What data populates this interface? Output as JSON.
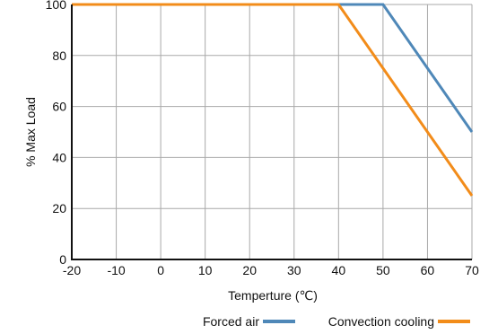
{
  "chart_data": {
    "type": "line",
    "xlabel": "Temperture (℃)",
    "ylabel": "% Max Load",
    "xlim": [
      -20,
      70
    ],
    "ylim": [
      0,
      100
    ],
    "xticks": [
      "-20",
      "-10",
      "0",
      "10",
      "20",
      "30",
      "40",
      "50",
      "60",
      "70"
    ],
    "yticks": [
      "0",
      "20",
      "40",
      "60",
      "80",
      "100"
    ],
    "grid": true,
    "legend_position": "bottom-right",
    "series": [
      {
        "name": "Forced air",
        "color": "#4f88b8",
        "x": [
          -20,
          50,
          70
        ],
        "y": [
          100,
          100,
          50
        ]
      },
      {
        "name": "Convection cooling",
        "color": "#f28c1a",
        "x": [
          -20,
          40,
          70
        ],
        "y": [
          100,
          100,
          25
        ]
      }
    ]
  }
}
